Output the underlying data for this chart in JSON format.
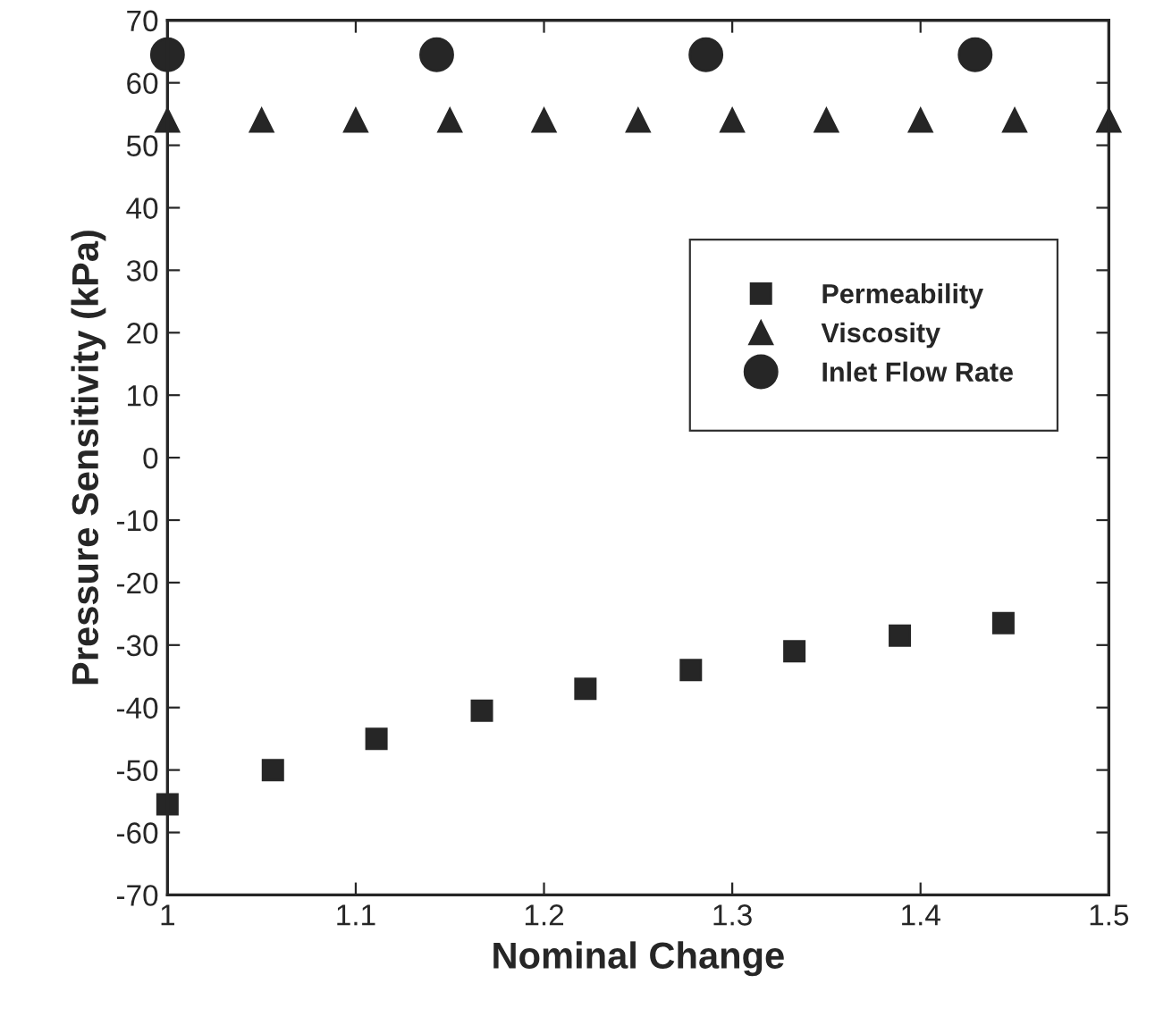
{
  "chart_data": {
    "type": "scatter",
    "xlabel": "Nominal Change",
    "ylabel": "Pressure Sensitivity (kPa)",
    "xlim": [
      1,
      1.5
    ],
    "xticks": [
      1,
      1.1,
      1.2,
      1.3,
      1.4,
      1.5
    ],
    "ylim": [
      -70,
      70
    ],
    "yticks": [
      -70,
      -60,
      -50,
      -40,
      -30,
      -20,
      -10,
      0,
      10,
      20,
      30,
      40,
      50,
      60,
      70
    ],
    "grid": false,
    "legend": "right",
    "series": [
      {
        "name": "Permeability",
        "color": "#262626",
        "marker": "square",
        "x": [
          1.0,
          1.056,
          1.111,
          1.167,
          1.222,
          1.278,
          1.333,
          1.389,
          1.444
        ],
        "values": [
          -55.5,
          -50,
          -45,
          -40.5,
          -37,
          -34,
          -31,
          -28.5,
          -26.5
        ]
      },
      {
        "name": "Viscosity",
        "color": "#262626",
        "marker": "triangle",
        "x": [
          1.0,
          1.05,
          1.1,
          1.15,
          1.2,
          1.25,
          1.3,
          1.35,
          1.4,
          1.45,
          1.5
        ],
        "values": [
          54,
          54,
          54,
          54,
          54,
          54,
          54,
          54,
          54,
          54,
          54
        ]
      },
      {
        "name": "Inlet Flow Rate",
        "color": "#262626",
        "marker": "circle",
        "x": [
          1.0,
          1.143,
          1.286,
          1.429
        ],
        "values": [
          64.5,
          64.5,
          64.5,
          64.5
        ]
      }
    ]
  }
}
